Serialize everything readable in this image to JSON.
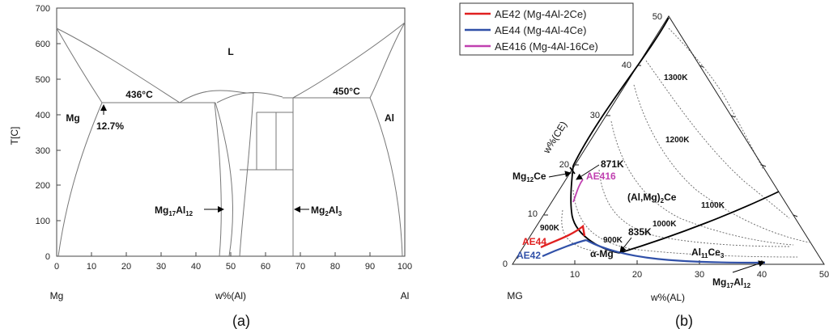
{
  "panel_a": {
    "y_label": "T[C]",
    "y_ticks": [
      "0",
      "100",
      "200",
      "300",
      "400",
      "500",
      "600",
      "700"
    ],
    "x_ticks": [
      "0",
      "10",
      "20",
      "30",
      "40",
      "50",
      "60",
      "70",
      "80",
      "90",
      "100"
    ],
    "x_label": "w%(Al)",
    "left_element": "Mg",
    "right_element": "Al",
    "region_L": "L",
    "region_Mg": "Mg",
    "region_Al": "Al",
    "temp_left": "436°C",
    "temp_right": "450°C",
    "solubility": "12.7%",
    "phase_left_main": "Mg",
    "phase_left_sub1": "17",
    "phase_left_mid": "Al",
    "phase_left_sub2": "12",
    "phase_right_main": "Mg",
    "phase_right_sub1": "2",
    "phase_right_mid": "Al",
    "phase_right_sub2": "3",
    "caption": "(a)"
  },
  "panel_b": {
    "legend": [
      {
        "label": "AE42 (Mg-4Al-2Ce)",
        "color": "#e02020"
      },
      {
        "label": "AE44 (Mg-4Al-4Ce)",
        "color": "#3050a8"
      },
      {
        "label": "AE416 (Mg-4Al-16Ce)",
        "color": "#c040b0"
      }
    ],
    "left_axis_label": "w%(CE)",
    "bottom_axis_label": "w%(AL)",
    "corner_label": "MG",
    "left_ticks": [
      "0",
      "10",
      "20",
      "30",
      "40",
      "50"
    ],
    "bottom_ticks": [
      "10",
      "20",
      "30",
      "40",
      "50"
    ],
    "iso_1300": "1300K",
    "iso_1200": "1200K",
    "iso_1100": "1100K",
    "iso_1000": "1000K",
    "iso_900a": "900K",
    "iso_900b": "900K",
    "pt_871": "871K",
    "pt_835": "835K",
    "alloy_ae416": "AE416",
    "alloy_ae44": "AE44",
    "alloy_ae42": "AE42",
    "phase_mg12ce_main": "Mg",
    "phase_mg12ce_sub": "12",
    "phase_mg12ce_end": "Ce",
    "phase_almgce_main": "(Al,Mg)",
    "phase_almgce_sub": "2",
    "phase_almgce_end": "Ce",
    "phase_al11ce3_main": "Al",
    "phase_al11ce3_sub1": "11",
    "phase_al11ce3_mid": "Ce",
    "phase_al11ce3_sub2": "3",
    "phase_alpha": "α-Mg",
    "phase_mg17al12_main": "Mg",
    "phase_mg17al12_sub1": "17",
    "phase_mg17al12_mid": "Al",
    "phase_mg17al12_sub2": "12",
    "caption": "(b)"
  }
}
